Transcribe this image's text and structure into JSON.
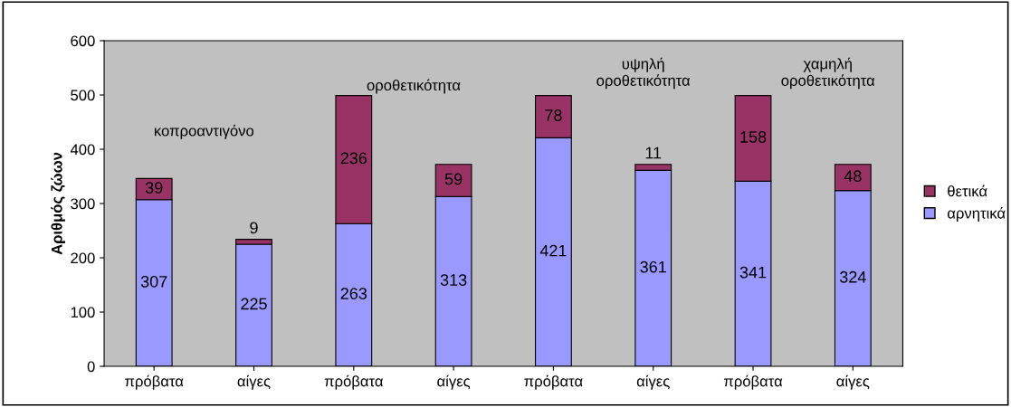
{
  "chart_data": {
    "type": "bar",
    "stacked": true,
    "ylabel": "Αριθμός ζώων",
    "categories": [
      "πρόβατα",
      "αίγες",
      "πρόβατα",
      "αίγες",
      "πρόβατα",
      "αίγες",
      "πρόβατα",
      "αίγες"
    ],
    "series": [
      {
        "name": "αρνητικά",
        "color": "#9999ff",
        "values": [
          307,
          225,
          263,
          313,
          421,
          361,
          341,
          324
        ]
      },
      {
        "name": "θετικά",
        "color": "#993366",
        "values": [
          39,
          9,
          236,
          59,
          78,
          11,
          158,
          48
        ]
      }
    ],
    "ylim": [
      0,
      600
    ],
    "yticks": [
      0,
      100,
      200,
      300,
      400,
      500,
      600
    ],
    "annotations": [
      "κοπροαντιγόνο",
      "οροθετικότητα",
      "υψηλή\nοροθετικότητα",
      "χαμηλή\nοροθετικότητα"
    ],
    "data_labels": true,
    "grid": false,
    "legend": "right"
  }
}
